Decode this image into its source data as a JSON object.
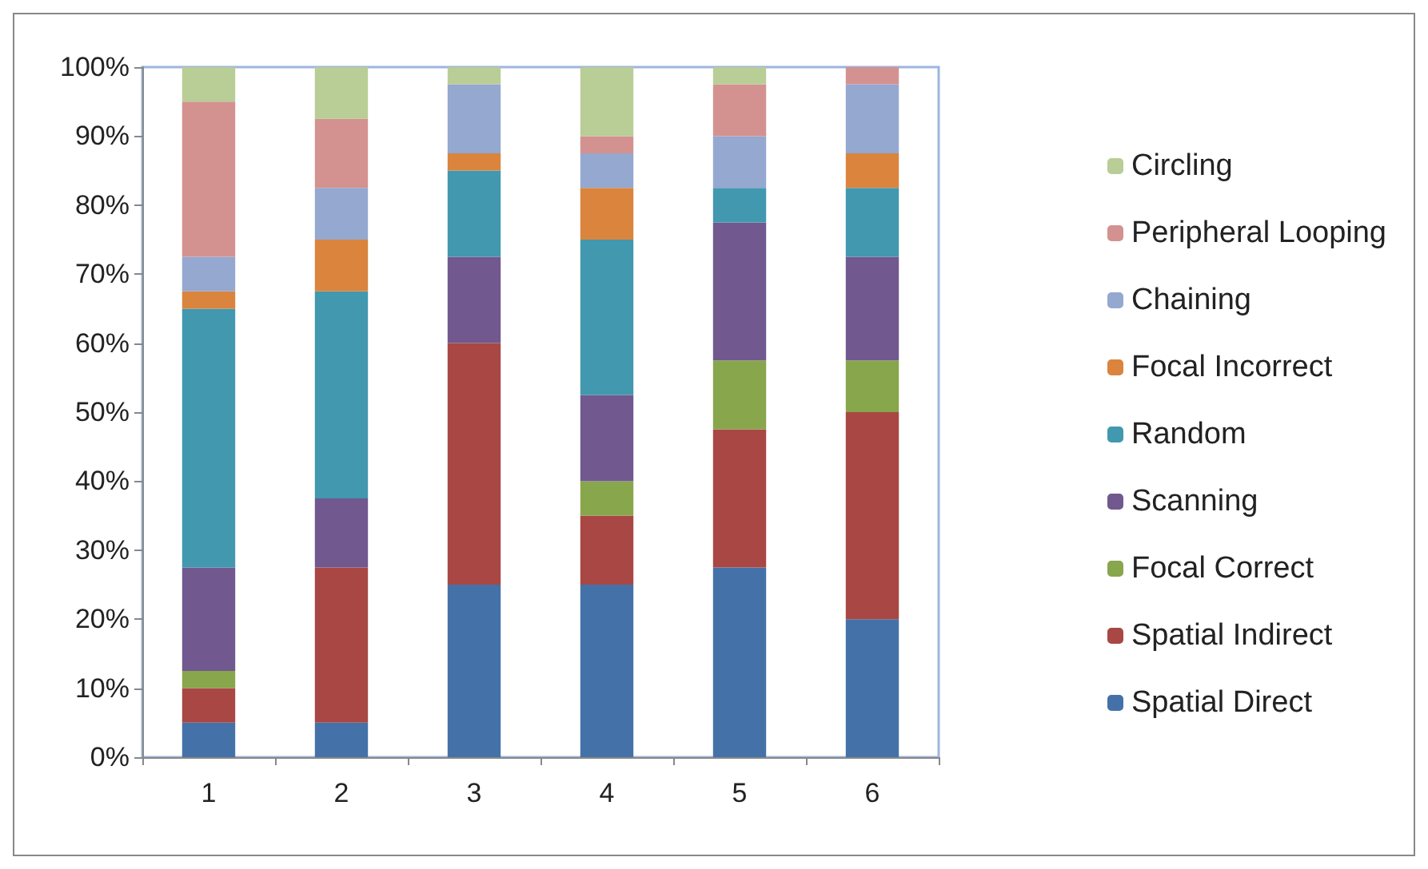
{
  "chart_data": {
    "type": "bar",
    "stacked": true,
    "categories": [
      "1",
      "2",
      "3",
      "4",
      "5",
      "6"
    ],
    "series": [
      {
        "name": "Spatial Direct",
        "color": "#4472a8",
        "values": [
          5,
          5,
          25,
          25,
          27.5,
          20
        ]
      },
      {
        "name": "Spatial Indirect",
        "color": "#a94744",
        "values": [
          5,
          22.5,
          35,
          10,
          20,
          30
        ]
      },
      {
        "name": "Focal Correct",
        "color": "#88a64c",
        "values": [
          2.5,
          0,
          0,
          5,
          10,
          7.5
        ]
      },
      {
        "name": "Scanning",
        "color": "#71588f",
        "values": [
          15,
          10,
          12.5,
          12.5,
          20,
          15
        ]
      },
      {
        "name": "Random",
        "color": "#4198af",
        "values": [
          37.5,
          30,
          12.5,
          22.5,
          5,
          10
        ]
      },
      {
        "name": "Focal Incorrect",
        "color": "#db843d",
        "values": [
          2.5,
          7.5,
          2.5,
          7.5,
          0,
          5
        ]
      },
      {
        "name": "Chaining",
        "color": "#94a8d0",
        "values": [
          5,
          7.5,
          10,
          5,
          7.5,
          10
        ]
      },
      {
        "name": "Peripheral Looping",
        "color": "#d39290",
        "values": [
          22.5,
          10,
          0,
          2.5,
          7.5,
          2.5
        ]
      },
      {
        "name": "Circling",
        "color": "#b9cd96",
        "values": [
          5,
          7.5,
          2.5,
          10,
          2.5,
          0
        ]
      }
    ],
    "ylim": [
      0,
      100
    ],
    "yticks": [
      {
        "value": 0,
        "label": "0%"
      },
      {
        "value": 10,
        "label": "10%"
      },
      {
        "value": 20,
        "label": "20%"
      },
      {
        "value": 30,
        "label": "30%"
      },
      {
        "value": 40,
        "label": "40%"
      },
      {
        "value": 50,
        "label": "50%"
      },
      {
        "value": 60,
        "label": "60%"
      },
      {
        "value": 70,
        "label": "70%"
      },
      {
        "value": 80,
        "label": "80%"
      },
      {
        "value": 90,
        "label": "90%"
      },
      {
        "value": 100,
        "label": "100%"
      }
    ],
    "grid": false,
    "legend": "right"
  }
}
